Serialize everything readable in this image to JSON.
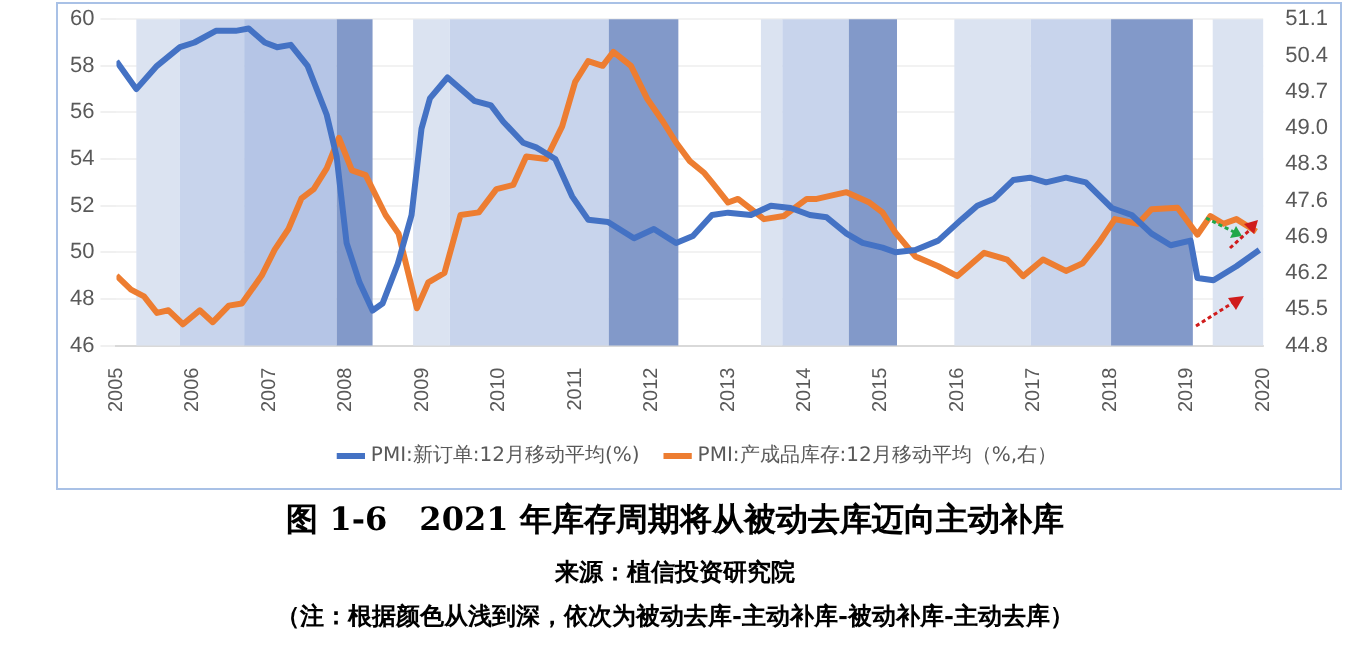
{
  "chart_data": {
    "type": "line",
    "title": "图 1-6　2021 年库存周期将从被动去库迈向主动补库",
    "annotations": [
      "来源：植信投资研究院",
      "（注：根据颜色从浅到深，依次为被动去库-主动补库-被动补库-主动去库）"
    ],
    "xlim": [
      2005,
      2020
    ],
    "xticks": [
      2005,
      2006,
      2007,
      2008,
      2009,
      2010,
      2011,
      2012,
      2013,
      2014,
      2015,
      2016,
      2017,
      2018,
      2019,
      2020
    ],
    "ylim": [
      46,
      60
    ],
    "yticks": [
      46,
      48,
      50,
      52,
      54,
      56,
      58,
      60
    ],
    "y2lim": [
      44.8,
      51.1
    ],
    "y2ticks": [
      44.8,
      45.5,
      46.2,
      46.9,
      47.6,
      48.3,
      {
        "value": 49,
        "label": "49.0"
      },
      49.7,
      50.4,
      51.1
    ],
    "grid": true,
    "legend": "bottom",
    "marker": "none",
    "line_style": "solid",
    "bands": [
      {
        "axis": "x",
        "from": 2005.26,
        "to": 2005.83,
        "color": "#dbe3f1"
      },
      {
        "axis": "x",
        "from": 2005.83,
        "to": 2006.67,
        "color": "#c8d4ec"
      },
      {
        "axis": "x",
        "from": 2006.67,
        "to": 2007.88,
        "color": "#b5c5e6"
      },
      {
        "axis": "x",
        "from": 2007.88,
        "to": 2008.35,
        "color": "#8299c9"
      },
      {
        "axis": "x",
        "from": 2008.88,
        "to": 2009.36,
        "color": "#dbe3f1"
      },
      {
        "axis": "x",
        "from": 2009.36,
        "to": 2011.44,
        "color": "#c8d4ec"
      },
      {
        "axis": "x",
        "from": 2011.44,
        "to": 2012.35,
        "color": "#8299c9"
      },
      {
        "axis": "x",
        "from": 2013.43,
        "to": 2013.71,
        "color": "#dbe3f1"
      },
      {
        "axis": "x",
        "from": 2013.71,
        "to": 2014.58,
        "color": "#c8d4ec"
      },
      {
        "axis": "x",
        "from": 2014.58,
        "to": 2015.21,
        "color": "#8299c9"
      },
      {
        "axis": "x",
        "from": 2015.96,
        "to": 2016.96,
        "color": "#dbe3f1"
      },
      {
        "axis": "x",
        "from": 2016.96,
        "to": 2018.01,
        "color": "#c8d4ec"
      },
      {
        "axis": "x",
        "from": 2018.01,
        "to": 2019.08,
        "color": "#8299c9"
      },
      {
        "axis": "x",
        "from": 2019.34,
        "to": 2020,
        "color": "#dbe3f1"
      }
    ],
    "series": [
      {
        "name": "PMI:新订单:12月移动平均(%)",
        "color": "#4472c4",
        "axis": "y",
        "x": [
          2005.0,
          2005.26,
          2005.53,
          2005.83,
          2006.02,
          2006.3,
          2006.56,
          2006.73,
          2006.94,
          2007.1,
          2007.28,
          2007.5,
          2007.75,
          2007.88,
          2008.01,
          2008.18,
          2008.35,
          2008.48,
          2008.68,
          2008.86,
          2008.99,
          2009.1,
          2009.33,
          2009.68,
          2009.9,
          2010.06,
          2010.32,
          2010.49,
          2010.74,
          2010.96,
          2011.17,
          2011.43,
          2011.77,
          2012.03,
          2012.32,
          2012.54,
          2012.79,
          2013.0,
          2013.3,
          2013.56,
          2013.82,
          2014.07,
          2014.29,
          2014.55,
          2014.76,
          2015.02,
          2015.19,
          2015.45,
          2015.75,
          2016.05,
          2016.26,
          2016.48,
          2016.73,
          2016.95,
          2017.16,
          2017.42,
          2017.68,
          2018.02,
          2018.28,
          2018.54,
          2018.79,
          2019.05,
          2019.14,
          2019.35,
          2019.65,
          2019.95
        ],
        "values": [
          58.2,
          57.0,
          58.0,
          58.8,
          59.0,
          59.5,
          59.5,
          59.6,
          59.0,
          58.8,
          58.9,
          58.0,
          55.9,
          54.1,
          50.4,
          48.7,
          47.5,
          47.8,
          49.5,
          51.6,
          55.3,
          56.6,
          57.5,
          56.5,
          56.3,
          55.6,
          54.7,
          54.5,
          54.0,
          52.4,
          51.4,
          51.3,
          50.6,
          51.0,
          50.4,
          50.7,
          51.6,
          51.7,
          51.6,
          52.0,
          51.9,
          51.6,
          51.5,
          50.8,
          50.4,
          50.2,
          50.0,
          50.1,
          50.5,
          51.4,
          52.0,
          52.3,
          53.1,
          53.2,
          53.0,
          53.2,
          53.0,
          51.9,
          51.6,
          50.8,
          50.3,
          50.5,
          48.9,
          48.8,
          49.4,
          50.1
        ]
      },
      {
        "name": "PMI:产成品库存:12月移动平均（%,右）",
        "color": "#ed7d31",
        "axis": "y2",
        "x": [
          2005.0,
          2005.19,
          2005.36,
          2005.53,
          2005.68,
          2005.87,
          2006.09,
          2006.26,
          2006.47,
          2006.64,
          2006.9,
          2007.07,
          2007.25,
          2007.42,
          2007.58,
          2007.75,
          2007.91,
          2008.08,
          2008.26,
          2008.52,
          2008.69,
          2008.93,
          2009.08,
          2009.29,
          2009.5,
          2009.74,
          2009.97,
          2010.19,
          2010.36,
          2010.62,
          2010.83,
          2011.0,
          2011.17,
          2011.36,
          2011.5,
          2011.73,
          2011.94,
          2012.15,
          2012.32,
          2012.5,
          2012.69,
          2012.79,
          2013.0,
          2013.13,
          2013.47,
          2013.73,
          2014.03,
          2014.16,
          2014.55,
          2014.85,
          2015.02,
          2015.19,
          2015.45,
          2015.75,
          2016.0,
          2016.35,
          2016.65,
          2016.86,
          2017.12,
          2017.42,
          2017.64,
          2017.85,
          2018.06,
          2018.36,
          2018.54,
          2018.88,
          2019.14,
          2019.31,
          2019.48,
          2019.65,
          2019.91
        ],
        "values": [
          46.15,
          45.88,
          45.75,
          45.43,
          45.48,
          45.21,
          45.48,
          45.25,
          45.57,
          45.61,
          46.15,
          46.65,
          47.05,
          47.64,
          47.82,
          48.22,
          48.81,
          48.18,
          48.09,
          47.32,
          46.96,
          45.52,
          46.02,
          46.2,
          47.32,
          47.37,
          47.82,
          47.9,
          48.45,
          48.4,
          49.03,
          49.89,
          50.29,
          50.2,
          50.47,
          50.2,
          49.57,
          49.12,
          48.72,
          48.36,
          48.13,
          47.95,
          47.56,
          47.63,
          47.24,
          47.3,
          47.63,
          47.63,
          47.76,
          47.56,
          47.37,
          46.98,
          46.52,
          46.33,
          46.14,
          46.59,
          46.46,
          46.14,
          46.46,
          46.24,
          46.39,
          46.78,
          47.24,
          47.15,
          47.43,
          47.46,
          46.94,
          47.3,
          47.15,
          47.24,
          47.0
        ]
      }
    ]
  }
}
